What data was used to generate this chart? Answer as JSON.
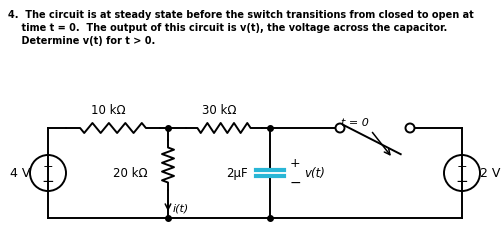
{
  "bg_color": "#ffffff",
  "wire_color": "#000000",
  "cap_color": "#29b6d6",
  "text_color": "#000000",
  "label_10k": "10 kΩ",
  "label_30k": "30 kΩ",
  "label_20k": "20 kΩ",
  "label_2uF": "2μF",
  "label_vt": "v(t)",
  "label_it": "i(t)",
  "label_4V": "4 V",
  "label_2V": "2 V",
  "label_t0": "t = 0",
  "problem_line1": "4.  The circuit is at steady state before the switch transitions from closed to open at",
  "problem_line2": "    time t = 0.  The output of this circuit is v(t), the voltage across the capacitor.",
  "problem_line3": "    Determine v(t) for t > 0."
}
